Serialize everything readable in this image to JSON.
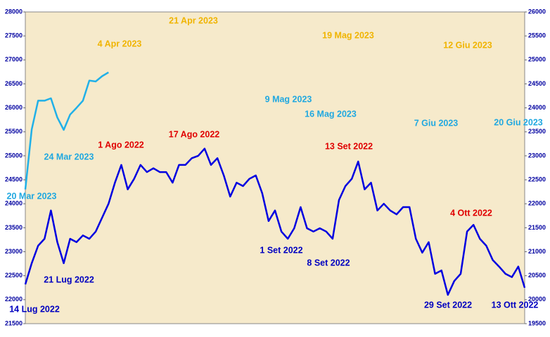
{
  "chart_data": {
    "type": "line",
    "ylim": [
      21500,
      28000
    ],
    "yticks": [
      21500,
      22000,
      22500,
      23000,
      23500,
      24000,
      24500,
      25000,
      25500,
      26000,
      26500,
      27000,
      27500,
      28000
    ],
    "y2lim": [
      19500,
      26000
    ],
    "y2ticks": [
      19500,
      20000,
      20500,
      21000,
      21500,
      22000,
      22500,
      23000,
      23500,
      24000,
      24500,
      25000,
      25500,
      26000
    ],
    "series": [
      {
        "color": "#0000e0",
        "axis": "y2",
        "values": [
          20320,
          20760,
          21125,
          21270,
          21860,
          21200,
          20760,
          21270,
          21200,
          21340,
          21270,
          21420,
          21710,
          22000,
          22440,
          22810,
          22300,
          22520,
          22810,
          22660,
          22740,
          22660,
          22660,
          22440,
          22810,
          22810,
          22950,
          23000,
          23150,
          22810,
          22950,
          22590,
          22150,
          22440,
          22370,
          22520,
          22590,
          22220,
          21640,
          21860,
          21420,
          21270,
          21490,
          21930,
          21490,
          21420,
          21490,
          21420,
          21270,
          22080,
          22370,
          22520,
          22880,
          22300,
          22440,
          21860,
          22000,
          21860,
          21780,
          21930,
          21930,
          21270,
          20980,
          21200,
          20540,
          20610,
          20100,
          20390,
          20540,
          21420,
          21560,
          21270,
          21125,
          20830,
          20690,
          20540,
          20470,
          20690,
          20250
        ]
      },
      {
        "color": "#20b0e8",
        "axis": "y",
        "values": [
          24300,
          25550,
          26150,
          26150,
          26200,
          25800,
          25540,
          25860,
          26000,
          26150,
          26570,
          26550,
          26660,
          26740
        ]
      }
    ],
    "annotations": [
      {
        "text": "21 Apr 2023",
        "color": "#f0b400"
      },
      {
        "text": "4 Apr 2023",
        "color": "#f0b400"
      },
      {
        "text": "19 Mag 2023",
        "color": "#f0b400"
      },
      {
        "text": "12 Giu 2023",
        "color": "#f0b400"
      },
      {
        "text": "9 Mag 2023",
        "color": "#20a8e0"
      },
      {
        "text": "16 Mag 2023",
        "color": "#20a8e0"
      },
      {
        "text": "7 Giu 2023",
        "color": "#20a8e0"
      },
      {
        "text": "20 Giu 2023",
        "color": "#20a8e0"
      },
      {
        "text": "24 Mar 2023",
        "color": "#20a8e0"
      },
      {
        "text": "20 Mar 2023",
        "color": "#20a8e0"
      },
      {
        "text": "1 Ago 2022",
        "color": "#e00000"
      },
      {
        "text": "17 Ago 2022",
        "color": "#e00000"
      },
      {
        "text": "13 Set 2022",
        "color": "#e00000"
      },
      {
        "text": "4 Ott 2022",
        "color": "#e00000"
      },
      {
        "text": "1 Set 2022",
        "color": "#0000c0"
      },
      {
        "text": "8 Set 2022",
        "color": "#0000c0"
      },
      {
        "text": "21 Lug 2022",
        "color": "#0000c0"
      },
      {
        "text": "14 Lug 2022",
        "color": "#0000c0"
      },
      {
        "text": "29 Set 2022",
        "color": "#0000c0"
      },
      {
        "text": "13 Ott 2022",
        "color": "#0000c0"
      }
    ]
  }
}
